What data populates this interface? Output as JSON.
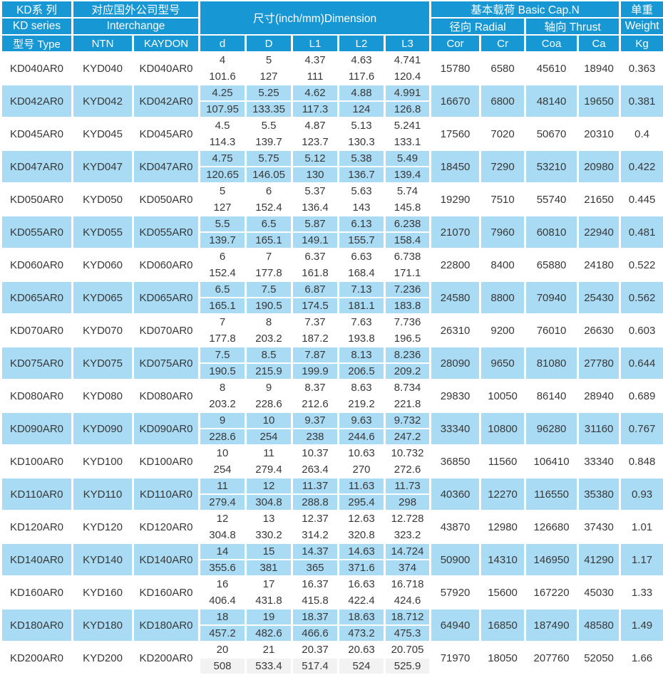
{
  "header": {
    "series_cn": "KD系 列",
    "series_en": "KD series",
    "type_label": "型号 Type",
    "interchange_cn": "对应国外公司型号",
    "interchange_en": "Interchange",
    "ntn_label": "NTN",
    "kaydon_label": "KAYDON",
    "dimension_label": "尺寸(inch/mm)Dimension",
    "dim_cols": {
      "d": "d",
      "D": "D",
      "L1": "L1",
      "L2": "L2",
      "L3": "L3"
    },
    "basic_cap_label": "基本载荷 Basic Cap.N",
    "radial_label": "径向 Radial",
    "thrust_label": "轴向 Thrust",
    "load_cols": {
      "cor": "Cor",
      "cr": "Cr",
      "coa": "Coa",
      "ca": "Ca"
    },
    "weight_cn": "单重",
    "weight_en": "Weight",
    "weight_unit": "Kg"
  },
  "colors": {
    "header_blue": "#1897d5",
    "row_blue": "#a9dbf4",
    "row_gray": "#f2f2f2"
  },
  "rows": [
    {
      "type": "KD040AR0",
      "ntn": "KYD040",
      "kaydon": "KD040AR0",
      "d": [
        "4",
        "101.6"
      ],
      "D": [
        "5",
        "127"
      ],
      "L1": [
        "4.37",
        "111"
      ],
      "L2": [
        "4.63",
        "117.6"
      ],
      "L3": [
        "4.741",
        "120.4"
      ],
      "cor": "15780",
      "cr": "6580",
      "coa": "45610",
      "ca": "18940",
      "kg": "0.363"
    },
    {
      "type": "KD042AR0",
      "ntn": "KYD042",
      "kaydon": "KD042AR0",
      "d": [
        "4.25",
        "107.95"
      ],
      "D": [
        "5.25",
        "133.35"
      ],
      "L1": [
        "4.62",
        "117.3"
      ],
      "L2": [
        "4.88",
        "124"
      ],
      "L3": [
        "4.991",
        "126.8"
      ],
      "cor": "16670",
      "cr": "6800",
      "coa": "48140",
      "ca": "19650",
      "kg": "0.381"
    },
    {
      "type": "KD045AR0",
      "ntn": "KYD045",
      "kaydon": "KD045AR0",
      "d": [
        "4.5",
        "114.3"
      ],
      "D": [
        "5.5",
        "139.7"
      ],
      "L1": [
        "4.87",
        "123.7"
      ],
      "L2": [
        "5.13",
        "130.3"
      ],
      "L3": [
        "5.241",
        "133.1"
      ],
      "cor": "17560",
      "cr": "7020",
      "coa": "50670",
      "ca": "20310",
      "kg": "0.4"
    },
    {
      "type": "KD047AR0",
      "ntn": "KYD047",
      "kaydon": "KD047AR0",
      "d": [
        "4.75",
        "120.65"
      ],
      "D": [
        "5.75",
        "146.05"
      ],
      "L1": [
        "5.12",
        "130"
      ],
      "L2": [
        "5.38",
        "136.7"
      ],
      "L3": [
        "5.49",
        "139.4"
      ],
      "cor": "18450",
      "cr": "7290",
      "coa": "53210",
      "ca": "20980",
      "kg": "0.422"
    },
    {
      "type": "KD050AR0",
      "ntn": "KYD050",
      "kaydon": "KD050AR0",
      "d": [
        "5",
        "127"
      ],
      "D": [
        "6",
        "152.4"
      ],
      "L1": [
        "5.37",
        "136.4"
      ],
      "L2": [
        "5.63",
        "143"
      ],
      "L3": [
        "5.74",
        "145.8"
      ],
      "cor": "19290",
      "cr": "7510",
      "coa": "55740",
      "ca": "21650",
      "kg": "0.445"
    },
    {
      "type": "KD055AR0",
      "ntn": "KYD055",
      "kaydon": "KD055AR0",
      "d": [
        "5.5",
        "139.7"
      ],
      "D": [
        "6.5",
        "165.1"
      ],
      "L1": [
        "5.87",
        "149.1"
      ],
      "L2": [
        "6.13",
        "155.7"
      ],
      "L3": [
        "6.238",
        "158.4"
      ],
      "cor": "21070",
      "cr": "7960",
      "coa": "60810",
      "ca": "22940",
      "kg": "0.481"
    },
    {
      "type": "KD060AR0",
      "ntn": "KYD060",
      "kaydon": "KD060AR0",
      "d": [
        "6",
        "152.4"
      ],
      "D": [
        "7",
        "177.8"
      ],
      "L1": [
        "6.37",
        "161.8"
      ],
      "L2": [
        "6.63",
        "168.4"
      ],
      "L3": [
        "6.738",
        "171.1"
      ],
      "cor": "22800",
      "cr": "8400",
      "coa": "65880",
      "ca": "24180",
      "kg": "0.522"
    },
    {
      "type": "KD065AR0",
      "ntn": "KYD065",
      "kaydon": "KD065AR0",
      "d": [
        "6.5",
        "165.1"
      ],
      "D": [
        "7.5",
        "190.5"
      ],
      "L1": [
        "6.87",
        "174.5"
      ],
      "L2": [
        "7.13",
        "181.1"
      ],
      "L3": [
        "7.236",
        "183.8"
      ],
      "cor": "24580",
      "cr": "8800",
      "coa": "70940",
      "ca": "25430",
      "kg": "0.562"
    },
    {
      "type": "KD070AR0",
      "ntn": "KYD070",
      "kaydon": "KD070AR0",
      "d": [
        "7",
        "177.8"
      ],
      "D": [
        "8",
        "203.2"
      ],
      "L1": [
        "7.37",
        "187.2"
      ],
      "L2": [
        "7.63",
        "193.8"
      ],
      "L3": [
        "7.736",
        "196.5"
      ],
      "cor": "26310",
      "cr": "9200",
      "coa": "76010",
      "ca": "26630",
      "kg": "0.603"
    },
    {
      "type": "KD075AR0",
      "ntn": "KYD075",
      "kaydon": "KD075AR0",
      "d": [
        "7.5",
        "190.5"
      ],
      "D": [
        "8.5",
        "215.9"
      ],
      "L1": [
        "7.87",
        "199.9"
      ],
      "L2": [
        "8.13",
        "206.5"
      ],
      "L3": [
        "8.236",
        "209.2"
      ],
      "cor": "28090",
      "cr": "9650",
      "coa": "81080",
      "ca": "27780",
      "kg": "0.644"
    },
    {
      "type": "KD080AR0",
      "ntn": "KYD080",
      "kaydon": "KD080AR0",
      "d": [
        "8",
        "203.2"
      ],
      "D": [
        "9",
        "228.6"
      ],
      "L1": [
        "8.37",
        "212.6"
      ],
      "L2": [
        "8.63",
        "219.2"
      ],
      "L3": [
        "8.734",
        "221.8"
      ],
      "cor": "29830",
      "cr": "10050",
      "coa": "86140",
      "ca": "28940",
      "kg": "0.689"
    },
    {
      "type": "KD090AR0",
      "ntn": "KYD090",
      "kaydon": "KD090AR0",
      "d": [
        "9",
        "228.6"
      ],
      "D": [
        "10",
        "254"
      ],
      "L1": [
        "9.37",
        "238"
      ],
      "L2": [
        "9.63",
        "244.6"
      ],
      "L3": [
        "9.732",
        "247.2"
      ],
      "cor": "33340",
      "cr": "10800",
      "coa": "96280",
      "ca": "31160",
      "kg": "0.767"
    },
    {
      "type": "KD100AR0",
      "ntn": "KYD100",
      "kaydon": "KD100AR0",
      "d": [
        "10",
        "254"
      ],
      "D": [
        "11",
        "279.4"
      ],
      "L1": [
        "10.37",
        "263.4"
      ],
      "L2": [
        "10.63",
        "270"
      ],
      "L3": [
        "10.732",
        "272.6"
      ],
      "cor": "36850",
      "cr": "11560",
      "coa": "106410",
      "ca": "33340",
      "kg": "0.848"
    },
    {
      "type": "KD110AR0",
      "ntn": "KYD110",
      "kaydon": "KD110AR0",
      "d": [
        "11",
        "279.4"
      ],
      "D": [
        "12",
        "304.8"
      ],
      "L1": [
        "11.37",
        "288.8"
      ],
      "L2": [
        "11.63",
        "295.4"
      ],
      "L3": [
        "11.73",
        "298"
      ],
      "cor": "40360",
      "cr": "12270",
      "coa": "116550",
      "ca": "35380",
      "kg": "0.93"
    },
    {
      "type": "KD120AR0",
      "ntn": "KYD120",
      "kaydon": "KD120AR0",
      "d": [
        "12",
        "304.8"
      ],
      "D": [
        "13",
        "330.2"
      ],
      "L1": [
        "12.37",
        "314.2"
      ],
      "L2": [
        "12.63",
        "320.8"
      ],
      "L3": [
        "12.728",
        "323.2"
      ],
      "cor": "43870",
      "cr": "12980",
      "coa": "126680",
      "ca": "37430",
      "kg": "1.01"
    },
    {
      "type": "KD140AR0",
      "ntn": "KYD140",
      "kaydon": "KD140AR0",
      "d": [
        "14",
        "355.6"
      ],
      "D": [
        "15",
        "381"
      ],
      "L1": [
        "14.37",
        "365"
      ],
      "L2": [
        "14.63",
        "371.6"
      ],
      "L3": [
        "14.724",
        "374"
      ],
      "cor": "50900",
      "cr": "14310",
      "coa": "146950",
      "ca": "41290",
      "kg": "1.17"
    },
    {
      "type": "KD160AR0",
      "ntn": "KYD160",
      "kaydon": "KD160AR0",
      "d": [
        "16",
        "406.4"
      ],
      "D": [
        "17",
        "431.8"
      ],
      "L1": [
        "16.37",
        "415.8"
      ],
      "L2": [
        "16.63",
        "422.4"
      ],
      "L3": [
        "16.718",
        "424.6"
      ],
      "cor": "57920",
      "cr": "15600",
      "coa": "167220",
      "ca": "45030",
      "kg": "1.33"
    },
    {
      "type": "KD180AR0",
      "ntn": "KYD180",
      "kaydon": "KD180AR0",
      "d": [
        "18",
        "457.2"
      ],
      "D": [
        "19",
        "482.6"
      ],
      "L1": [
        "18.37",
        "466.6"
      ],
      "L2": [
        "18.63",
        "473.2"
      ],
      "L3": [
        "18.712",
        "475.3"
      ],
      "cor": "64940",
      "cr": "16850",
      "coa": "187490",
      "ca": "48580",
      "kg": "1.49"
    },
    {
      "type": "KD200AR0",
      "ntn": "KYD200",
      "kaydon": "KD200AR0",
      "d": [
        "20",
        "508"
      ],
      "D": [
        "21",
        "533.4"
      ],
      "L1": [
        "20.37",
        "517.4"
      ],
      "L2": [
        "20.63",
        "524"
      ],
      "L3": [
        "20.705",
        "525.9"
      ],
      "cor": "71970",
      "cr": "18050",
      "coa": "207760",
      "ca": "52050",
      "kg": "1.66"
    }
  ]
}
